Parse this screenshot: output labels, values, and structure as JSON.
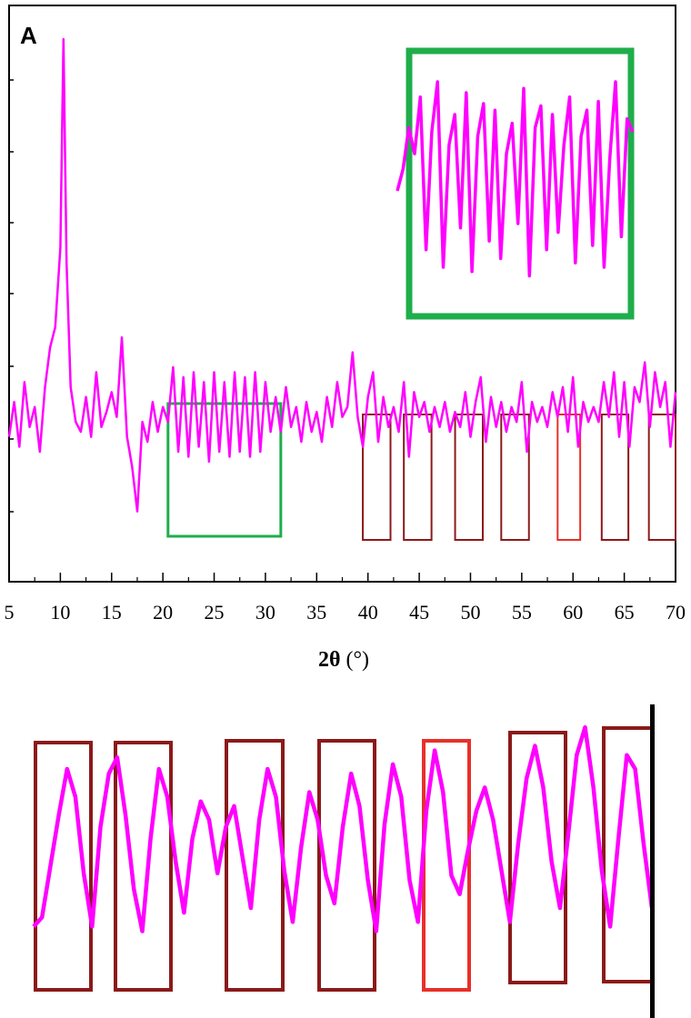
{
  "chart_data": [
    {
      "type": "line",
      "panel_label": "A",
      "xlabel_symbol": "2θ",
      "xlabel_unit": " (°)",
      "xlim": [
        5,
        70
      ],
      "x_ticks": [
        "5",
        "10",
        "15",
        "20",
        "25",
        "30",
        "35",
        "40",
        "45",
        "50",
        "55",
        "60",
        "65",
        "70"
      ],
      "y_ticks_labeled": false,
      "grid": false,
      "series": [
        {
          "color": "#ff00ff",
          "x": [
            5.0,
            5.5,
            6.0,
            6.5,
            7.0,
            7.5,
            8.0,
            8.5,
            9.0,
            9.5,
            10.0,
            10.3,
            10.6,
            11.0,
            11.5,
            12.0,
            12.5,
            13.0,
            13.5,
            14.0,
            14.5,
            15.0,
            15.5,
            16.0,
            16.5,
            17.0,
            17.5,
            18.0,
            18.5,
            19.0,
            19.5,
            20.0,
            20.5,
            21.0,
            21.5,
            22.0,
            22.5,
            23.0,
            23.5,
            24.0,
            24.5,
            25.0,
            25.5,
            26.0,
            26.5,
            27.0,
            27.5,
            28.0,
            28.5,
            29.0,
            29.5,
            30.0,
            30.5,
            31.0,
            31.5,
            32.0,
            32.5,
            33.0,
            33.5,
            34.0,
            34.5,
            35.0,
            35.5,
            36.0,
            36.5,
            37.0,
            37.5,
            38.0,
            38.5,
            39.0,
            39.5,
            40.0,
            40.5,
            41.0,
            41.5,
            42.0,
            42.5,
            43.0,
            43.5,
            44.0,
            44.5,
            45.0,
            45.5,
            46.0,
            46.5,
            47.0,
            47.5,
            48.0,
            48.5,
            49.0,
            49.5,
            50.0,
            50.5,
            51.0,
            51.5,
            52.0,
            52.5,
            53.0,
            53.5,
            54.0,
            54.5,
            55.0,
            55.5,
            56.0,
            56.5,
            57.0,
            57.5,
            58.0,
            58.5,
            59.0,
            59.5,
            60.0,
            60.5,
            61.0,
            61.5,
            62.0,
            62.5,
            63.0,
            63.5,
            64.0,
            64.5,
            65.0,
            65.5,
            66.0,
            66.5,
            67.0,
            67.5,
            68.0,
            68.5,
            69.0,
            69.5,
            70.0
          ],
          "y": [
            0.2,
            0.27,
            0.18,
            0.31,
            0.22,
            0.26,
            0.17,
            0.3,
            0.38,
            0.42,
            0.58,
            1.0,
            0.55,
            0.3,
            0.23,
            0.21,
            0.28,
            0.2,
            0.33,
            0.22,
            0.25,
            0.29,
            0.24,
            0.4,
            0.2,
            0.14,
            0.05,
            0.23,
            0.19,
            0.27,
            0.21,
            0.26,
            0.23,
            0.34,
            0.17,
            0.32,
            0.16,
            0.33,
            0.18,
            0.31,
            0.15,
            0.33,
            0.17,
            0.31,
            0.16,
            0.33,
            0.17,
            0.32,
            0.16,
            0.33,
            0.17,
            0.31,
            0.21,
            0.28,
            0.21,
            0.3,
            0.22,
            0.26,
            0.19,
            0.27,
            0.21,
            0.25,
            0.19,
            0.28,
            0.22,
            0.31,
            0.24,
            0.26,
            0.37,
            0.24,
            0.18,
            0.28,
            0.33,
            0.19,
            0.28,
            0.22,
            0.26,
            0.21,
            0.31,
            0.16,
            0.29,
            0.24,
            0.27,
            0.21,
            0.26,
            0.22,
            0.27,
            0.21,
            0.25,
            0.22,
            0.29,
            0.2,
            0.27,
            0.32,
            0.19,
            0.28,
            0.22,
            0.27,
            0.21,
            0.26,
            0.23,
            0.31,
            0.17,
            0.27,
            0.23,
            0.26,
            0.22,
            0.29,
            0.24,
            0.3,
            0.21,
            0.32,
            0.18,
            0.27,
            0.23,
            0.26,
            0.23,
            0.31,
            0.24,
            0.33,
            0.2,
            0.31,
            0.18,
            0.3,
            0.27,
            0.35,
            0.22,
            0.33,
            0.26,
            0.31,
            0.18,
            0.29
          ]
        }
      ],
      "highlight_boxes": [
        {
          "x_range": [
            20.5,
            31.5
          ],
          "color": "#1fae4b"
        },
        {
          "x_range": [
            39.5,
            42.2
          ],
          "color": "#8b1a1a"
        },
        {
          "x_range": [
            43.5,
            46.2
          ],
          "color": "#8b1a1a"
        },
        {
          "x_range": [
            48.5,
            51.2
          ],
          "color": "#8b1a1a"
        },
        {
          "x_range": [
            53.0,
            55.7
          ],
          "color": "#8b1a1a"
        },
        {
          "x_range": [
            58.5,
            60.7
          ],
          "color": "#e8302a"
        },
        {
          "x_range": [
            62.8,
            65.4
          ],
          "color": "#8b1a1a"
        },
        {
          "x_range": [
            67.4,
            70.0
          ],
          "color": "#8b1a1a"
        }
      ],
      "inset": {
        "frame_color": "#1fae4b",
        "series_color": "#ff00ff",
        "y": [
          0.45,
          0.55,
          0.74,
          0.62,
          0.88,
          0.18,
          0.72,
          0.95,
          0.1,
          0.66,
          0.8,
          0.28,
          0.9,
          0.08,
          0.7,
          0.85,
          0.22,
          0.82,
          0.14,
          0.62,
          0.76,
          0.3,
          0.92,
          0.06,
          0.74,
          0.84,
          0.18,
          0.8,
          0.26,
          0.66,
          0.88,
          0.12,
          0.7,
          0.82,
          0.2,
          0.86,
          0.1,
          0.6,
          0.95,
          0.24,
          0.78,
          0.72
        ]
      }
    },
    {
      "type": "line",
      "panel": "zoom-detail",
      "x_ticks": [],
      "series": [
        {
          "color": "#ff00ff",
          "y": [
            0.12,
            0.16,
            0.38,
            0.6,
            0.8,
            0.68,
            0.35,
            0.12,
            0.55,
            0.78,
            0.85,
            0.6,
            0.28,
            0.1,
            0.5,
            0.8,
            0.68,
            0.4,
            0.18,
            0.5,
            0.66,
            0.58,
            0.35,
            0.55,
            0.64,
            0.42,
            0.2,
            0.58,
            0.8,
            0.68,
            0.36,
            0.14,
            0.46,
            0.7,
            0.58,
            0.34,
            0.22,
            0.55,
            0.78,
            0.64,
            0.32,
            0.1,
            0.56,
            0.82,
            0.68,
            0.32,
            0.14,
            0.62,
            0.88,
            0.7,
            0.34,
            0.26,
            0.45,
            0.62,
            0.72,
            0.58,
            0.36,
            0.14,
            0.48,
            0.76,
            0.9,
            0.72,
            0.4,
            0.2,
            0.52,
            0.86,
            0.98,
            0.72,
            0.36,
            0.12,
            0.5,
            0.86,
            0.8,
            0.48,
            0.2
          ]
        }
      ],
      "highlight_boxes": [
        {
          "color": "#8b1a1a"
        },
        {
          "color": "#8b1a1a"
        },
        {
          "color": "#8b1a1a"
        },
        {
          "color": "#8b1a1a"
        },
        {
          "color": "#e8302a"
        },
        {
          "color": "#8b1a1a"
        },
        {
          "color": "#8b1a1a"
        }
      ]
    }
  ]
}
